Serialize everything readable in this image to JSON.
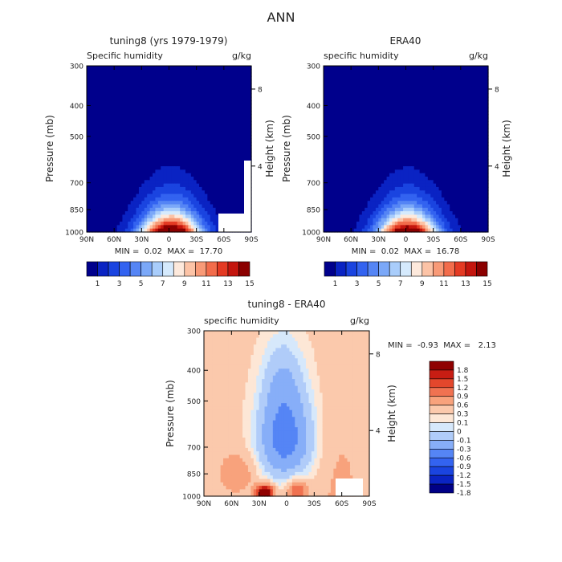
{
  "figure": {
    "title": "ANN"
  },
  "palettes": {
    "abs": [
      "#00008c",
      "#0a23c3",
      "#1a44e0",
      "#3363f0",
      "#5585f5",
      "#7ba8f8",
      "#a9cdfb",
      "#d5eafd",
      "#fde9dc",
      "#fcc3a6",
      "#f89a77",
      "#f26c4b",
      "#e43a23",
      "#c4160e",
      "#8b0000"
    ],
    "diff": [
      "#000086",
      "#0a23c3",
      "#1a44e0",
      "#3363f0",
      "#5585f5",
      "#87aef8",
      "#b0ccf9",
      "#d6e8fb",
      "#fde7d6",
      "#fbc9ac",
      "#f8a27c",
      "#f07251",
      "#e3472c",
      "#c81d13",
      "#8f0000"
    ]
  },
  "chart_data": [
    {
      "type": "heatmap",
      "title": "tuning8 (yrs 1979-1979)",
      "subtitle_left": "Specific humidity",
      "units": "g/kg",
      "ylabel": "Pressure (mb)",
      "ylabel_right": "Height (km)",
      "x_ticks": [
        "90N",
        "60N",
        "30N",
        "0",
        "30S",
        "60S",
        "90S"
      ],
      "y_ticks": [
        "300",
        "400",
        "500",
        "700",
        "850",
        "1000"
      ],
      "y_ticks_right": [
        "8",
        "4"
      ],
      "ylim": [
        300,
        1000
      ],
      "stats": "MIN =  0.02  MAX =  17.70",
      "colorbar_labels": [
        "1",
        "3",
        "5",
        "7",
        "9",
        "11",
        "13",
        "15"
      ],
      "field": {
        "max": 17.7,
        "center_lat": -2,
        "base_half_width": 55,
        "top_pressure": 430,
        "edge_top": 690
      }
    },
    {
      "type": "heatmap",
      "title": "ERA40",
      "subtitle_left": "specific humidity",
      "units": "g/kg",
      "ylabel": "Pressure (mb)",
      "ylabel_right": "Height (km)",
      "x_ticks": [
        "90N",
        "60N",
        "30N",
        "0",
        "30S",
        "60S",
        "90S"
      ],
      "y_ticks": [
        "300",
        "400",
        "500",
        "700",
        "850",
        "1000"
      ],
      "y_ticks_right": [
        "8",
        "4"
      ],
      "ylim": [
        300,
        1000
      ],
      "stats": "MIN =  0.02  MAX =  16.78",
      "colorbar_labels": [
        "1",
        "3",
        "5",
        "7",
        "9",
        "11",
        "13",
        "15"
      ],
      "field": {
        "max": 16.78,
        "center_lat": -2,
        "base_half_width": 55,
        "top_pressure": 430,
        "edge_top": 690
      }
    },
    {
      "type": "heatmap",
      "title": "tuning8 - ERA40",
      "subtitle_left": "specific humidity",
      "units": "g/kg",
      "ylabel": "Pressure (mb)",
      "ylabel_right": "Height (km)",
      "x_ticks": [
        "90N",
        "60N",
        "30N",
        "0",
        "30S",
        "60S",
        "90S"
      ],
      "y_ticks": [
        "300",
        "400",
        "500",
        "700",
        "850",
        "1000"
      ],
      "y_ticks_right": [
        "8",
        "4"
      ],
      "ylim": [
        300,
        1000
      ],
      "stats": "MIN =  -0.93  MAX =   2.13",
      "colorbar_labels": [
        "1.8",
        "1.5",
        "1.2",
        "0.9",
        "0.6",
        "0.3",
        "0.1",
        "0",
        "-0.1",
        "-0.3",
        "-0.6",
        "-0.9",
        "-1.2",
        "-1.5",
        "-1.8"
      ]
    }
  ]
}
